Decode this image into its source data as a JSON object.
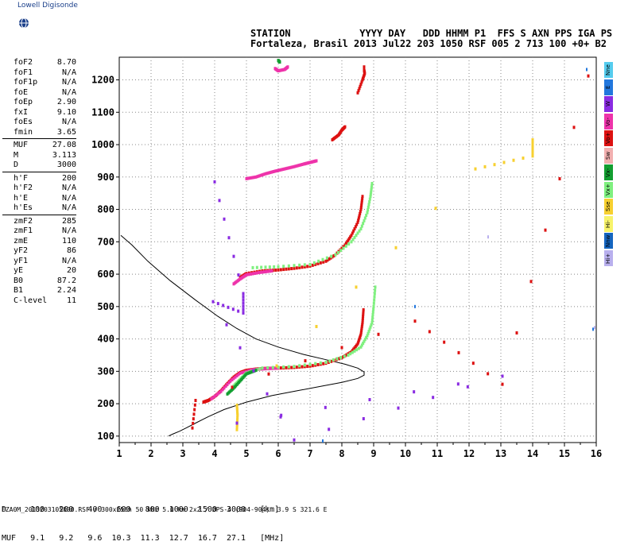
{
  "header": {
    "brand": "Lowell Digisonde",
    "line1": "STATION            YYYY DAY   DDD HHMM P1  FFS S AXN PPS IGA PS",
    "line2": "Fortaleza, Brasil 2013 Jul22 203 1050 RSF 005 2 713 100 +0+ B2"
  },
  "params": {
    "group1": [
      {
        "k": "foF2",
        "v": "8.70"
      },
      {
        "k": "foF1",
        "v": "N/A"
      },
      {
        "k": "foF1p",
        "v": "N/A"
      },
      {
        "k": "foE",
        "v": "N/A"
      },
      {
        "k": "foEp",
        "v": "2.90"
      },
      {
        "k": "fxI",
        "v": "9.10"
      },
      {
        "k": "foEs",
        "v": "N/A"
      },
      {
        "k": "fmin",
        "v": "3.65"
      }
    ],
    "group2": [
      {
        "k": "MUF",
        "v": "27.08"
      },
      {
        "k": "M",
        "v": "3.113"
      },
      {
        "k": "D",
        "v": "3000"
      }
    ],
    "group3": [
      {
        "k": "h'F",
        "v": "200"
      },
      {
        "k": "h'F2",
        "v": "N/A"
      },
      {
        "k": "h'E",
        "v": "N/A"
      },
      {
        "k": "h'Es",
        "v": "N/A"
      }
    ],
    "group4": [
      {
        "k": "zmF2",
        "v": "285"
      },
      {
        "k": "zmF1",
        "v": "N/A"
      },
      {
        "k": "zmE",
        "v": "110"
      },
      {
        "k": "yF2",
        "v": "86"
      },
      {
        "k": "yF1",
        "v": "N/A"
      },
      {
        "k": "yE",
        "v": "20"
      },
      {
        "k": "B0",
        "v": "87.2"
      },
      {
        "k": "B1",
        "v": "2.24"
      },
      {
        "k": "C-level",
        "v": "11"
      }
    ]
  },
  "legend": [
    {
      "label": "Nne",
      "color": "#55ccee"
    },
    {
      "label": "E",
      "color": "#2277dd"
    },
    {
      "label": "W",
      "color": "#8a2be2"
    },
    {
      "label": "Vo-",
      "color": "#ee33aa"
    },
    {
      "label": "Vo+",
      "color": "#dd1111"
    },
    {
      "label": "Sw",
      "color": "#f2b0b0"
    },
    {
      "label": "Vx-",
      "color": "#129e30"
    },
    {
      "label": "Vx+",
      "color": "#7ff07f"
    },
    {
      "label": "Sse",
      "color": "#f7d030"
    },
    {
      "label": "Hi-",
      "color": "#f7f36a"
    },
    {
      "label": "Nnw",
      "color": "#1565c0"
    },
    {
      "label": "Hi+",
      "color": "#b9b0ee"
    }
  ],
  "bottom_table": {
    "row1": "D     100   200   400   600   800  1000  1500  3000   [km]",
    "row2": "MUF   9.1   9.2   9.6  10.3  11.3  12.7  16.7  27.1   [MHz]"
  },
  "footer": "FZA0M_2013203105000.RSF / 300x256h 50 kHz 5.0 km 2x2 / DPS-4 (904-904)  3.9 S 321.6 E",
  "chart_data": {
    "type": "scatter",
    "title": "",
    "xlabel": "",
    "ylabel": "",
    "xlim": [
      1,
      16
    ],
    "ylim": [
      80,
      1270
    ],
    "x_ticks": [
      1,
      2,
      3,
      4,
      5,
      6,
      7,
      8,
      9,
      10,
      11,
      12,
      13,
      14,
      15,
      16
    ],
    "y_ticks": [
      100,
      200,
      300,
      400,
      500,
      600,
      700,
      800,
      900,
      1000,
      1100,
      1200
    ],
    "grid": "dotted",
    "series": [
      {
        "color": "#dd1111",
        "points": [
          [
            3.65,
            205
          ],
          [
            3.8,
            210
          ],
          [
            4.0,
            222
          ],
          [
            4.2,
            240
          ],
          [
            4.4,
            262
          ],
          [
            4.6,
            282
          ],
          [
            4.8,
            296
          ],
          [
            5.0,
            303
          ],
          [
            5.3,
            307
          ],
          [
            5.6,
            309
          ],
          [
            6.0,
            310
          ],
          [
            6.5,
            312
          ],
          [
            7.0,
            316
          ],
          [
            7.5,
            325
          ],
          [
            8.0,
            342
          ],
          [
            8.3,
            360
          ],
          [
            8.5,
            385
          ],
          [
            8.6,
            415
          ],
          [
            8.65,
            450
          ],
          [
            8.68,
            490
          ]
        ]
      },
      {
        "color": "#ee33aa",
        "points": [
          [
            3.9,
            215
          ],
          [
            4.2,
            238
          ],
          [
            4.5,
            270
          ],
          [
            4.8,
            294
          ],
          [
            5.2,
            305
          ],
          [
            5.6,
            308
          ],
          [
            6.0,
            310
          ]
        ]
      },
      {
        "color": "#7ff07f",
        "points": [
          [
            4.6,
            255
          ],
          [
            4.8,
            275
          ],
          [
            5.0,
            295
          ],
          [
            5.5,
            310
          ],
          [
            6.5,
            315
          ],
          [
            7.5,
            328
          ],
          [
            8.2,
            350
          ],
          [
            8.6,
            375
          ],
          [
            8.8,
            410
          ],
          [
            8.95,
            450
          ],
          [
            9.0,
            500
          ],
          [
            9.05,
            560
          ]
        ]
      },
      {
        "color": "#129e30",
        "points": [
          [
            4.4,
            230
          ],
          [
            4.6,
            248
          ],
          [
            4.8,
            270
          ],
          [
            5.0,
            292
          ],
          [
            5.3,
            303
          ]
        ]
      },
      {
        "color": "#dd1111",
        "points": [
          [
            4.8,
            590
          ],
          [
            5.0,
            602
          ],
          [
            5.5,
            610
          ],
          [
            6.0,
            613
          ],
          [
            6.5,
            618
          ],
          [
            7.0,
            625
          ],
          [
            7.5,
            640
          ],
          [
            7.8,
            660
          ],
          [
            8.1,
            690
          ],
          [
            8.3,
            720
          ],
          [
            8.5,
            760
          ],
          [
            8.6,
            800
          ],
          [
            8.65,
            840
          ]
        ]
      },
      {
        "color": "#ee33aa",
        "points": [
          [
            4.6,
            570
          ],
          [
            4.8,
            585
          ],
          [
            5.0,
            598
          ],
          [
            5.4,
            605
          ],
          [
            5.8,
            610
          ]
        ]
      },
      {
        "color": "#7ff07f",
        "points": [
          [
            5.2,
            620
          ],
          [
            6.0,
            623
          ],
          [
            7.0,
            630
          ],
          [
            7.8,
            660
          ],
          [
            8.3,
            700
          ],
          [
            8.6,
            740
          ],
          [
            8.8,
            790
          ],
          [
            8.9,
            840
          ],
          [
            8.95,
            880
          ]
        ]
      },
      {
        "color": "#ee33aa",
        "points": [
          [
            5.0,
            895
          ],
          [
            5.3,
            900
          ],
          [
            5.6,
            910
          ],
          [
            5.9,
            918
          ],
          [
            6.2,
            925
          ],
          [
            6.5,
            932
          ],
          [
            6.8,
            940
          ],
          [
            7.0,
            945
          ],
          [
            7.2,
            950
          ]
        ]
      },
      {
        "color": "#dd1111",
        "points": [
          [
            7.7,
            1015
          ],
          [
            7.9,
            1030
          ],
          [
            8.0,
            1045
          ],
          [
            8.1,
            1055
          ]
        ]
      },
      {
        "color": "#dd1111",
        "points": [
          [
            8.7,
            1240
          ],
          [
            8.7,
            1230
          ],
          [
            8.72,
            1220
          ],
          [
            8.65,
            1200
          ],
          [
            8.5,
            1160
          ]
        ]
      },
      {
        "color": "#ee33aa",
        "points": [
          [
            5.9,
            1235
          ],
          [
            6.0,
            1228
          ],
          [
            6.2,
            1232
          ],
          [
            6.3,
            1240
          ]
        ]
      },
      {
        "color": "#129e30",
        "points": [
          [
            6.0,
            1260
          ],
          [
            6.05,
            1255
          ]
        ]
      },
      {
        "color": "#2277dd",
        "points": [
          [
            15.7,
            1232
          ],
          [
            10.3,
            500
          ],
          [
            7.4,
            85
          ],
          [
            15.9,
            430
          ]
        ]
      },
      {
        "color": "#dd1111",
        "points": [
          [
            15.75,
            1212
          ],
          [
            13.05,
            260
          ],
          [
            10.3,
            455
          ],
          [
            3.4,
            210
          ],
          [
            3.3,
            125
          ]
        ]
      },
      {
        "color": "#b9b0ee",
        "points": [
          [
            12.6,
            715
          ],
          [
            15.95,
            435
          ]
        ]
      },
      {
        "color": "#f7d030",
        "points": [
          [
            14.0,
            1015
          ],
          [
            14.0,
            965
          ],
          [
            12.2,
            925
          ],
          [
            4.7,
            195
          ],
          [
            4.72,
            165
          ],
          [
            4.7,
            120
          ]
        ]
      },
      {
        "color": "#8a2be2",
        "points": [
          [
            4.0,
            885
          ],
          [
            4.9,
            540
          ],
          [
            4.9,
            480
          ],
          [
            3.95,
            515
          ],
          [
            6.5,
            88
          ],
          [
            13.05,
            285
          ],
          [
            4.7,
            140
          ]
        ]
      }
    ],
    "profile_line": [
      [
        2.55,
        100
      ],
      [
        2.7,
        107
      ],
      [
        2.9,
        115
      ],
      [
        3.1,
        125
      ],
      [
        3.4,
        140
      ],
      [
        3.8,
        160
      ],
      [
        4.3,
        182
      ],
      [
        5.0,
        205
      ],
      [
        5.8,
        225
      ],
      [
        6.6,
        240
      ],
      [
        7.4,
        255
      ],
      [
        8.0,
        266
      ],
      [
        8.5,
        278
      ],
      [
        8.7,
        288
      ],
      [
        8.7,
        298
      ],
      [
        8.5,
        310
      ],
      [
        8.1,
        322
      ],
      [
        7.5,
        336
      ],
      [
        6.8,
        352
      ],
      [
        6.0,
        375
      ],
      [
        5.3,
        400
      ],
      [
        4.7,
        432
      ],
      [
        4.1,
        470
      ],
      [
        3.4,
        520
      ],
      [
        2.6,
        580
      ],
      [
        1.9,
        640
      ],
      [
        1.4,
        690
      ],
      [
        1.05,
        720
      ]
    ]
  }
}
